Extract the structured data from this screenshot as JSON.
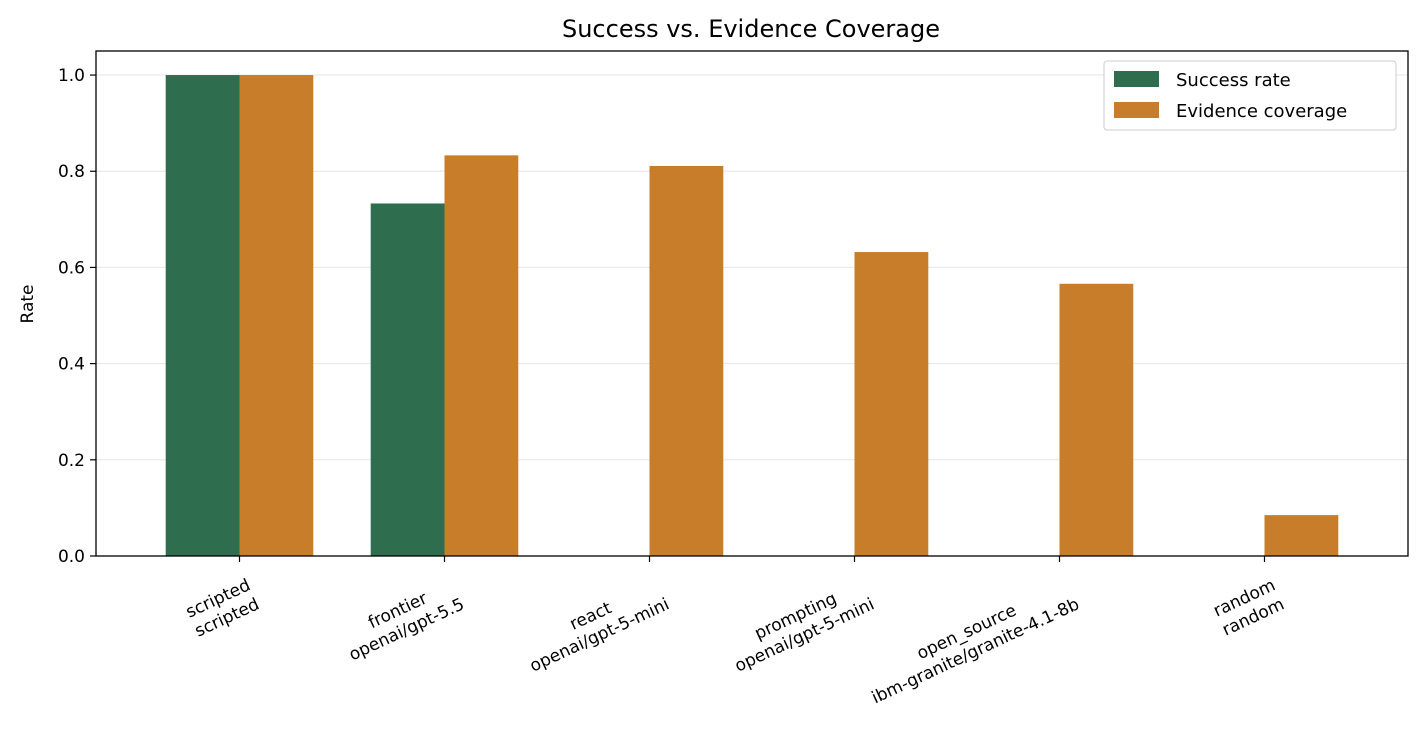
{
  "chart_data": {
    "type": "bar",
    "title": "Success vs. Evidence Coverage",
    "xlabel": "",
    "ylabel": "Rate",
    "ylim": [
      0,
      1.05
    ],
    "yticks": [
      "0.0",
      "0.2",
      "0.4",
      "0.6",
      "0.8",
      "1.0"
    ],
    "grid": "horizontal",
    "legend_position": "top-right",
    "categories": [
      [
        "scripted",
        "scripted"
      ],
      [
        "frontier",
        "openai/gpt-5.5"
      ],
      [
        "react",
        "openai/gpt-5-mini"
      ],
      [
        "prompting",
        "openai/gpt-5-mini"
      ],
      [
        "open_source",
        "ibm-granite/granite-4.1-8b"
      ],
      [
        "random",
        "random"
      ]
    ],
    "series": [
      {
        "name": "Success rate",
        "color": "#2e6e4e",
        "values": [
          1.0,
          0.733,
          0.0,
          0.0,
          0.0,
          0.0
        ]
      },
      {
        "name": "Evidence coverage",
        "color": "#c77d2a",
        "values": [
          1.0,
          0.833,
          0.811,
          0.632,
          0.566,
          0.085
        ]
      }
    ]
  }
}
